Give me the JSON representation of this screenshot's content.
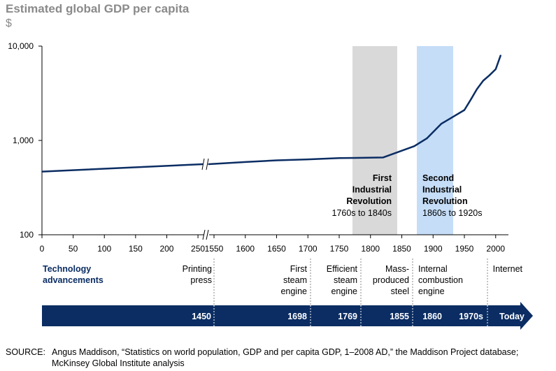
{
  "title": "Estimated global GDP per capita",
  "unit": "$",
  "colors": {
    "line": "#0b2d63",
    "first_period": "#d9d9d9",
    "second_period": "#c5ddf7",
    "arrow": "#0b2d63",
    "tech_head": "#0b2d63"
  },
  "chart_data": {
    "type": "line",
    "title": "Estimated global GDP per capita",
    "ylabel": "$",
    "y_scale": "log",
    "ylim": [
      100,
      10000
    ],
    "yticks": [
      {
        "value": 100,
        "label": "100"
      },
      {
        "value": 1000,
        "label": "1,000"
      },
      {
        "value": 10000,
        "label": "10,000"
      }
    ],
    "axis_break": "between 250 and 1550",
    "xticks": [
      "0",
      "50",
      "100",
      "150",
      "200",
      "250",
      "1550",
      "1600",
      "1650",
      "1700",
      "1750",
      "1800",
      "1850",
      "1900",
      "1950",
      "2000"
    ],
    "series": [
      {
        "name": "GDP per capita",
        "points": [
          [
            0,
            467
          ],
          [
            250,
            560
          ],
          [
            1550,
            560
          ],
          [
            1600,
            590
          ],
          [
            1650,
            615
          ],
          [
            1700,
            630
          ],
          [
            1750,
            650
          ],
          [
            1820,
            660
          ],
          [
            1870,
            870
          ],
          [
            1890,
            1050
          ],
          [
            1913,
            1500
          ],
          [
            1930,
            1750
          ],
          [
            1950,
            2100
          ],
          [
            1960,
            2700
          ],
          [
            1970,
            3500
          ],
          [
            1980,
            4300
          ],
          [
            1990,
            4900
          ],
          [
            2000,
            5700
          ],
          [
            2008,
            8000
          ]
        ]
      }
    ],
    "periods": [
      {
        "title_lines": [
          "First",
          "Industrial",
          "Revolution"
        ],
        "range": "1760s to 1840s",
        "start": 1760,
        "end": 1840
      },
      {
        "title_lines": [
          "Second",
          "Industrial",
          "Revolution"
        ],
        "range": "1860s to 1920s",
        "start": 1860,
        "end": 1920
      }
    ]
  },
  "technology": {
    "heading_lines": [
      "Technology",
      "advancements"
    ],
    "items": [
      {
        "lines": [
          "Printing",
          "press"
        ],
        "year": "1450"
      },
      {
        "lines": [
          "First",
          "steam",
          "engine"
        ],
        "year": "1698"
      },
      {
        "lines": [
          "Efficient",
          "steam",
          "engine"
        ],
        "year": "1769"
      },
      {
        "lines": [
          "Mass-",
          "produced",
          "steel"
        ],
        "year": "1855"
      },
      {
        "lines": [
          "Internal",
          "combustion",
          "engine"
        ],
        "year": "1860"
      },
      {
        "lines": [
          "Internet"
        ],
        "year": "1970s"
      }
    ],
    "today_label": "Today"
  },
  "source": {
    "tag": "SOURCE:",
    "text": "Angus Maddison, “Statistics on world population, GDP and per capita GDP, 1–2008 AD,” the Maddison Project database; McKinsey Global Institute analysis"
  }
}
